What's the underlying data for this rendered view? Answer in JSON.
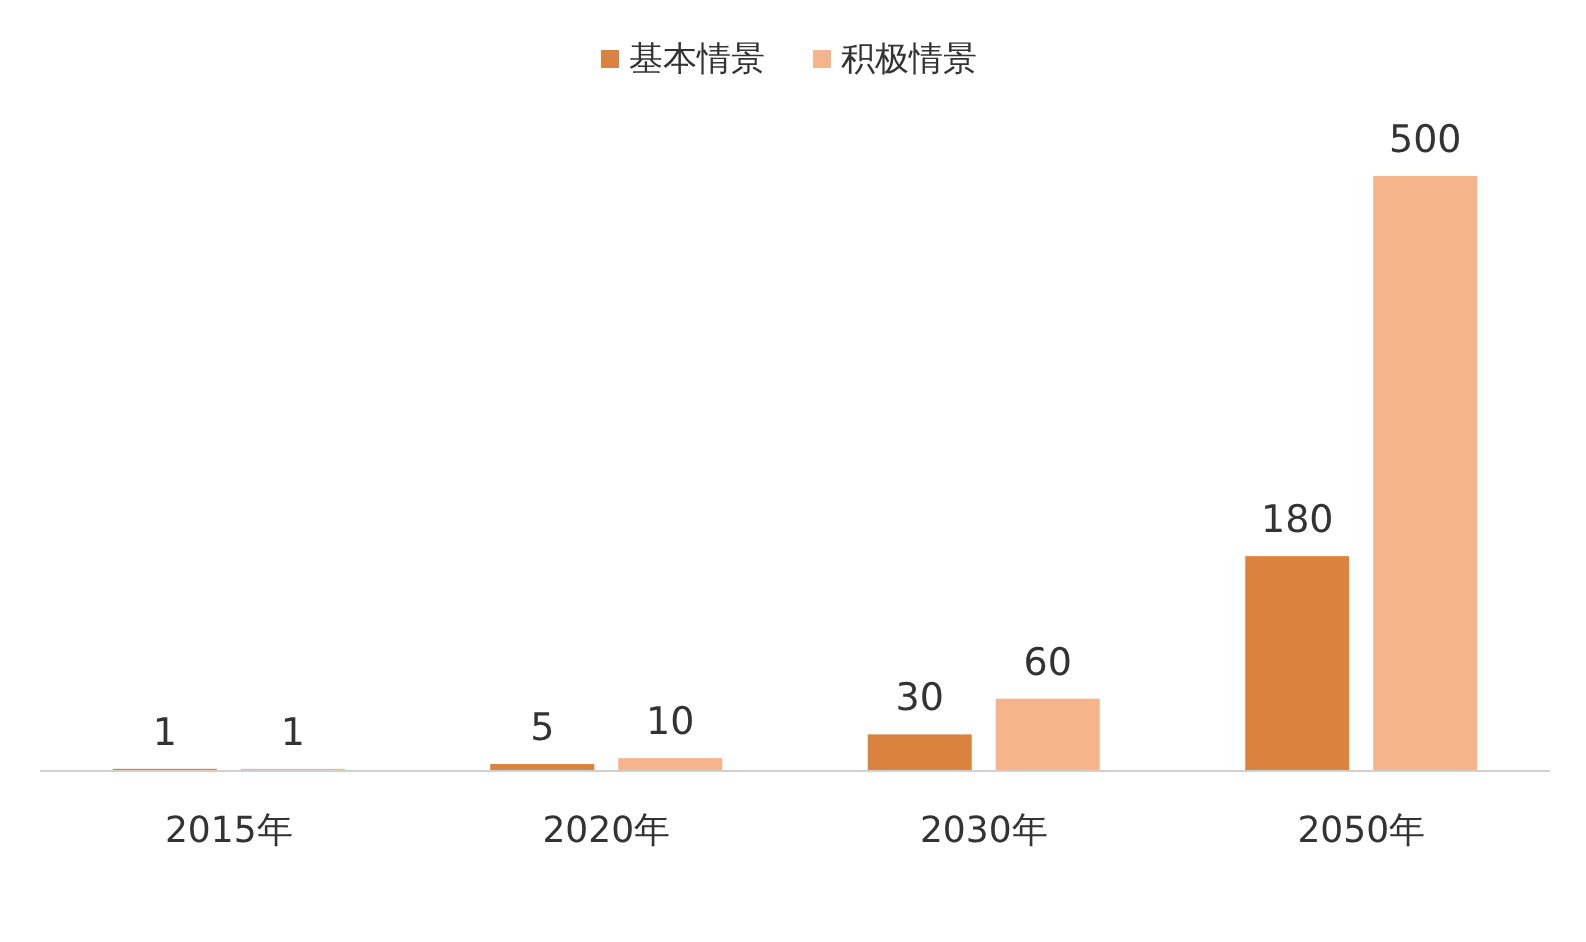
{
  "chart_data": {
    "type": "bar",
    "categories": [
      "2015年",
      "2020年",
      "2030年",
      "2050年"
    ],
    "series": [
      {
        "name": "基本情景",
        "color": "#d9833f",
        "values": [
          1,
          5,
          30,
          180
        ]
      },
      {
        "name": "积极情景",
        "color": "#f5b48a",
        "values": [
          1,
          10,
          60,
          500
        ]
      }
    ],
    "data_labels": true,
    "legend": "top"
  }
}
